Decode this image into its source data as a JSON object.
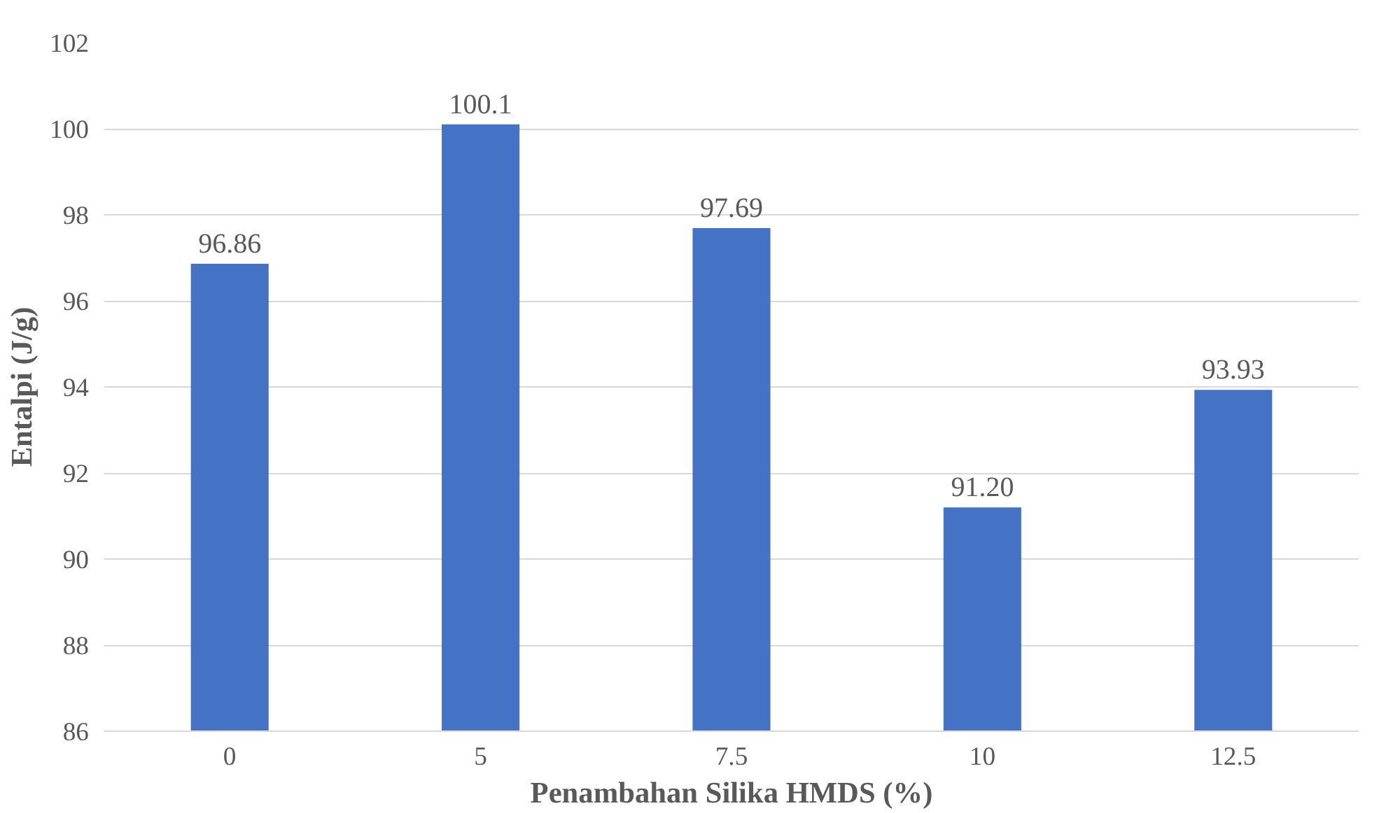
{
  "chart_data": {
    "type": "bar",
    "xlabel": "Penambahan Silika HMDS (%)",
    "ylabel": "Entalpi (J/g)",
    "categories": [
      "0",
      "5",
      "7.5",
      "10",
      "12.5"
    ],
    "values": [
      96.86,
      100.1,
      97.69,
      91.2,
      93.93
    ],
    "value_labels": [
      "96.86",
      "100.1",
      "97.69",
      "91.20",
      "93.93"
    ],
    "color": "#4472c4",
    "ylim": [
      86,
      102
    ],
    "yticks": [
      86,
      88,
      90,
      92,
      94,
      96,
      98,
      100,
      102
    ],
    "grid": "y"
  }
}
